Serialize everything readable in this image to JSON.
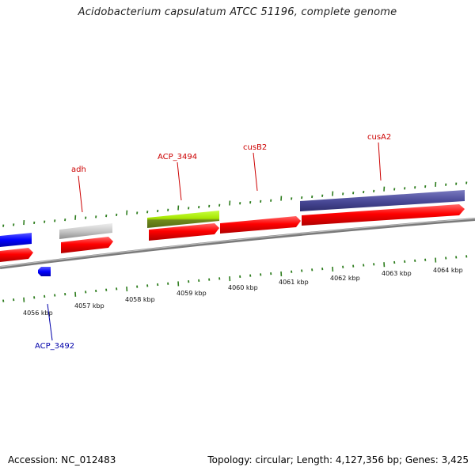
{
  "title": "Acidobacterium capsulatum ATCC 51196, complete genome",
  "footer": {
    "accession": "Accession: NC_012483",
    "stats": "Topology: circular; Length: 4,127,356 bp; Genes: 3,425"
  },
  "scale": {
    "tick_labels": [
      "4056 kbp",
      "4057 kbp",
      "4058 kbp",
      "4059 kbp",
      "4060 kbp",
      "4061 kbp",
      "4062 kbp",
      "4063 kbp",
      "4064 kbp"
    ]
  },
  "genes": [
    {
      "name": "adh",
      "color": "#cc0000"
    },
    {
      "name": "ACP_3494",
      "color": "#cc0000"
    },
    {
      "name": "cusB2",
      "color": "#cc0000"
    },
    {
      "name": "cusA2",
      "color": "#cc0000"
    },
    {
      "name": "ACP_3492",
      "color": "#0000aa"
    }
  ],
  "colors": {
    "cds": "#ff0000",
    "gene_blue": "#0000ff",
    "gray_feature": "#c8c8c8",
    "green_feature": "#a6e600",
    "purple_feature": "#4b4b99",
    "backbone": "#7a7a7a",
    "ticks": "#2e7d1e"
  }
}
